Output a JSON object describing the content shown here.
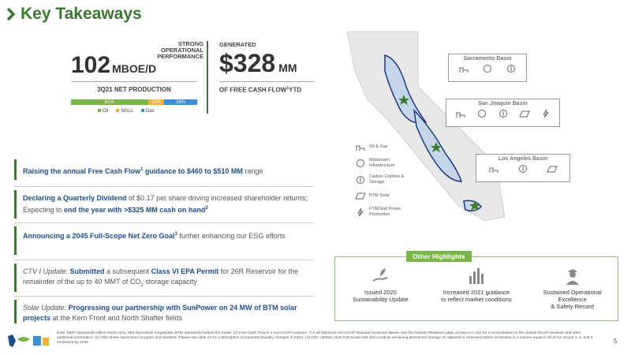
{
  "slide": {
    "title": "Key Takeaways",
    "page_number": "5",
    "accent_color": "#3a7a2e",
    "blue_color": "#1f4e8c"
  },
  "kpi_production": {
    "caption": "STRONG OPERATIONAL PERFORMANCE",
    "value": "102",
    "unit": "MBOE/D",
    "label": "3Q21 NET PRODUCTION",
    "mix": [
      {
        "name": "Oil",
        "label": "61%",
        "pct": 61,
        "color": "#7ab648"
      },
      {
        "name": "NGLs",
        "label": "13%",
        "pct": 13,
        "color": "#f2b134"
      },
      {
        "name": "Gas",
        "label": "26%",
        "pct": 26,
        "color": "#3b8fd6"
      }
    ]
  },
  "kpi_fcf": {
    "caption": "GENERATED",
    "value": "$328",
    "unit": "MM",
    "label_pre": "OF FREE CASH FLOW",
    "label_sup": "1",
    "label_post": "YTD"
  },
  "takeaways": [
    {
      "blue": "Raising the annual Free Cash Flow",
      "sup": "1",
      "blue2": " guidance to $460 to $510 MM",
      "rest": " range"
    },
    {
      "blue": "Declaring a Quarterly Dividend",
      "rest": " of $0.17 per share driving increased shareholder returns; Expecting to ",
      "blue2": "end the year with >$325 MM cash on hand",
      "sup": "2"
    },
    {
      "blue": "Announcing a 2045 Full-Scope Net Zero Goal",
      "sup": "3",
      "rest": " further enhancing our ESG efforts"
    },
    {
      "italic": "CTV I Update",
      "rest1": ": ",
      "blue": "Submitted",
      "rest2": " a subsequent ",
      "blue2": "Class VI EPA Permit",
      "rest3": " for 26R Reservoir for the remainder of the up to 40 MMT of CO",
      "sub": "2",
      "rest4": " storage capacity"
    },
    {
      "italic": "Solar Update",
      "rest1": ": ",
      "blue": "Progressing our partnership with SunPower on 24 MW of BTM solar projects",
      "rest2": " at the Kern Front and North Shafter fields"
    }
  ],
  "map": {
    "basins": [
      {
        "name": "Sacramento Basin"
      },
      {
        "name": "San Joaquin Basin"
      },
      {
        "name": "Los Angeles Basin"
      }
    ],
    "legend": [
      {
        "icon": "oil-gas-icon",
        "label": "Oil & Gas"
      },
      {
        "icon": "midstream-icon",
        "label": "Midstream Infrastructure"
      },
      {
        "icon": "carbon-capture-icon",
        "label": "Carbon Capture & Storage"
      },
      {
        "icon": "btm-solar-icon",
        "label": "BTM Solar"
      },
      {
        "icon": "ftm-power-icon",
        "label": "FTM/Grid Power Production"
      }
    ]
  },
  "other_highlights": {
    "title": "Other Highlights",
    "items": [
      {
        "icon": "hand-plant-icon",
        "line1": "Issued 2020",
        "line2": "Sustainability Update",
        "line3": ""
      },
      {
        "icon": "bar-chart-icon",
        "line1": "Increased 2021 guidance",
        "line2": "to reflect market conditions",
        "line3": ""
      },
      {
        "icon": "safety-worker-icon",
        "line1": "Sustained Operational",
        "line2": "Excellence",
        "line3": "& Safety Record"
      }
    ]
  },
  "footnote": "Note: MMT represents million metric tons. MW represents megawatts. BTM represents behind the meter. (1) Free Cash Flow is a non-GAAP measure. For all historical non-GAAP financial measures please see the Investor Relations page at www.crc.com for a reconciliation to the closest GAAP measure and other additional information. (2) After share repurchase program and dividend. Please see slide 23 for a description of expected liquidity changes in 4Q21. (3) CRC defines 2045 Full-Scope Net Zero Goal as achieving permanent storage of captured or removed carbon emissions in a volume equal to all of our Scope 1, 2, and 3 emissions by 2045."
}
